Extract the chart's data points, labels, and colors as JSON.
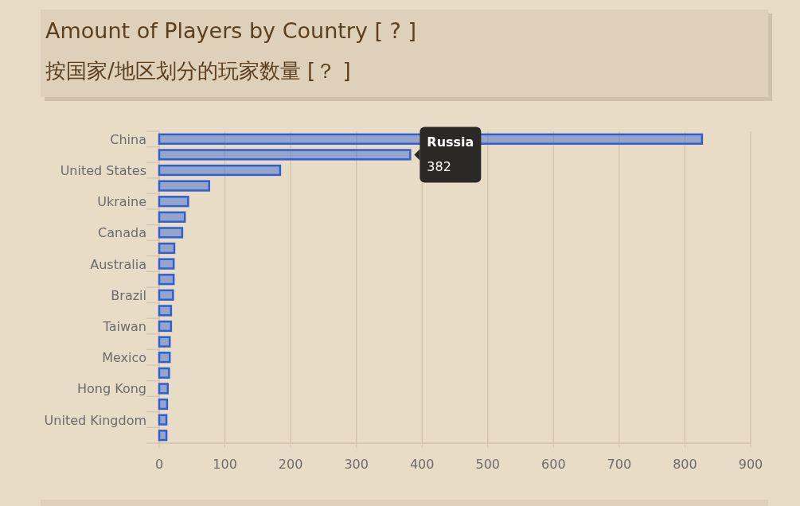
{
  "chart_data": {
    "type": "bar",
    "orientation": "horizontal",
    "title": "Amount of Players by Country [ ? ]",
    "subtitle": "按国家/地区划分的玩家数量 [？ ]",
    "categories": [
      "China",
      null,
      "United States",
      null,
      "Ukraine",
      null,
      "Canada",
      null,
      "Australia",
      null,
      "Brazil",
      null,
      "Taiwan",
      null,
      "Mexico",
      null,
      "Hong Kong",
      null,
      "United Kingdom",
      null
    ],
    "values": [
      826,
      382,
      184,
      76,
      44,
      39,
      35,
      23,
      22,
      22,
      21,
      18,
      18,
      16,
      16,
      15,
      13,
      12,
      11,
      11
    ],
    "value_labels": [
      null,
      "382",
      null,
      null,
      null,
      null,
      null,
      null,
      null,
      null,
      null,
      null,
      null,
      null,
      null,
      null,
      null,
      null,
      null,
      null
    ],
    "annotations": [
      {
        "text": "Russia",
        "x": 382
      }
    ],
    "color": "#2f5fd0",
    "xlim": [
      0,
      900
    ],
    "xticks": [
      0,
      100,
      200,
      300,
      400,
      500,
      600,
      700,
      800,
      900
    ],
    "grid": "x"
  }
}
